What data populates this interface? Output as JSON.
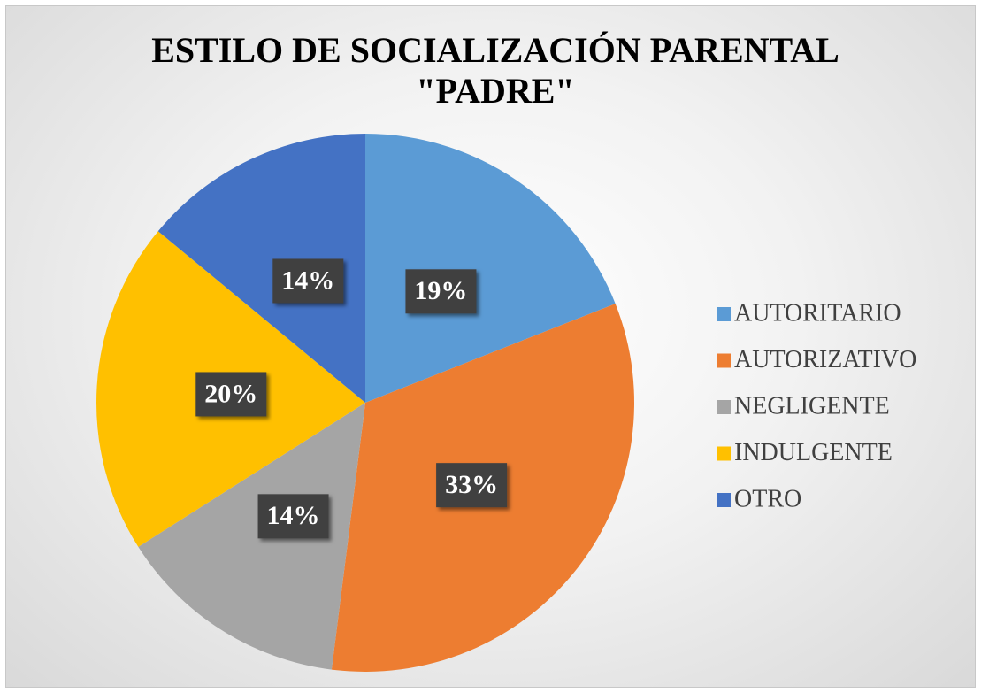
{
  "chart_data": {
    "type": "pie",
    "title": "ESTILO DE SOCIALIZACIÓN PARENTAL\n\"PADRE\"",
    "categories": [
      "AUTORITARIO",
      "AUTORIZATIVO",
      "NEGLIGENTE",
      "INDULGENTE",
      "OTRO"
    ],
    "values": [
      19,
      33,
      14,
      20,
      14
    ],
    "value_labels": [
      "19%",
      "33%",
      "14%",
      "20%",
      "14%"
    ],
    "colors": [
      "#5b9bd5",
      "#ed7d31",
      "#a5a5a5",
      "#ffc000",
      "#4472c4"
    ],
    "legend": "right"
  }
}
